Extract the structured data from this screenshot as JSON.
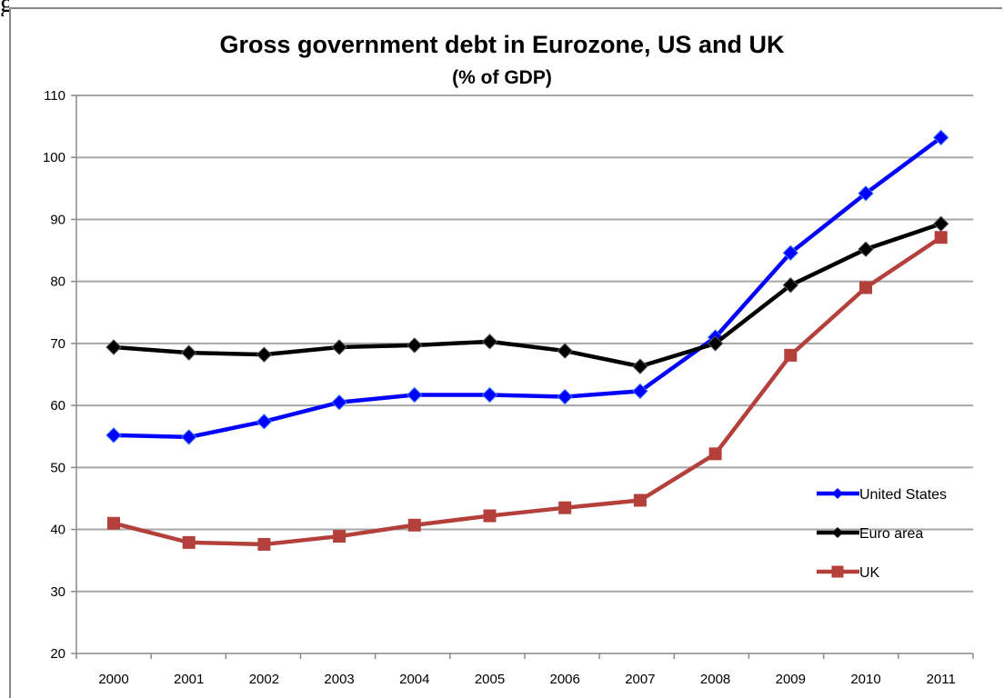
{
  "chart_data": {
    "type": "line",
    "title": "Gross government debt in Eurozone, US and UK",
    "subtitle": "(% of GDP)",
    "categories": [
      "2000",
      "2001",
      "2002",
      "2003",
      "2004",
      "2005",
      "2006",
      "2007",
      "2008",
      "2009",
      "2010",
      "2011"
    ],
    "ylim": [
      20,
      110
    ],
    "yticks": [
      20,
      30,
      40,
      50,
      60,
      70,
      80,
      90,
      100,
      110
    ],
    "grid": true,
    "legend_position": "bottom-right",
    "series": [
      {
        "name": "United States",
        "color": "#0000ff",
        "marker": "diamond",
        "values": [
          55.2,
          54.9,
          57.4,
          60.5,
          61.7,
          61.7,
          61.4,
          62.3,
          71.0,
          84.6,
          94.2,
          103.2
        ]
      },
      {
        "name": "Euro area",
        "color": "#000000",
        "marker": "diamond",
        "values": [
          69.4,
          68.5,
          68.2,
          69.4,
          69.7,
          70.3,
          68.8,
          66.3,
          70.0,
          79.4,
          85.2,
          89.3
        ]
      },
      {
        "name": "UK",
        "color": "#b4403c",
        "marker": "square",
        "values": [
          41.0,
          37.9,
          37.6,
          38.9,
          40.7,
          42.2,
          43.5,
          44.7,
          52.2,
          68.1,
          79.0,
          87.1
        ]
      }
    ]
  }
}
